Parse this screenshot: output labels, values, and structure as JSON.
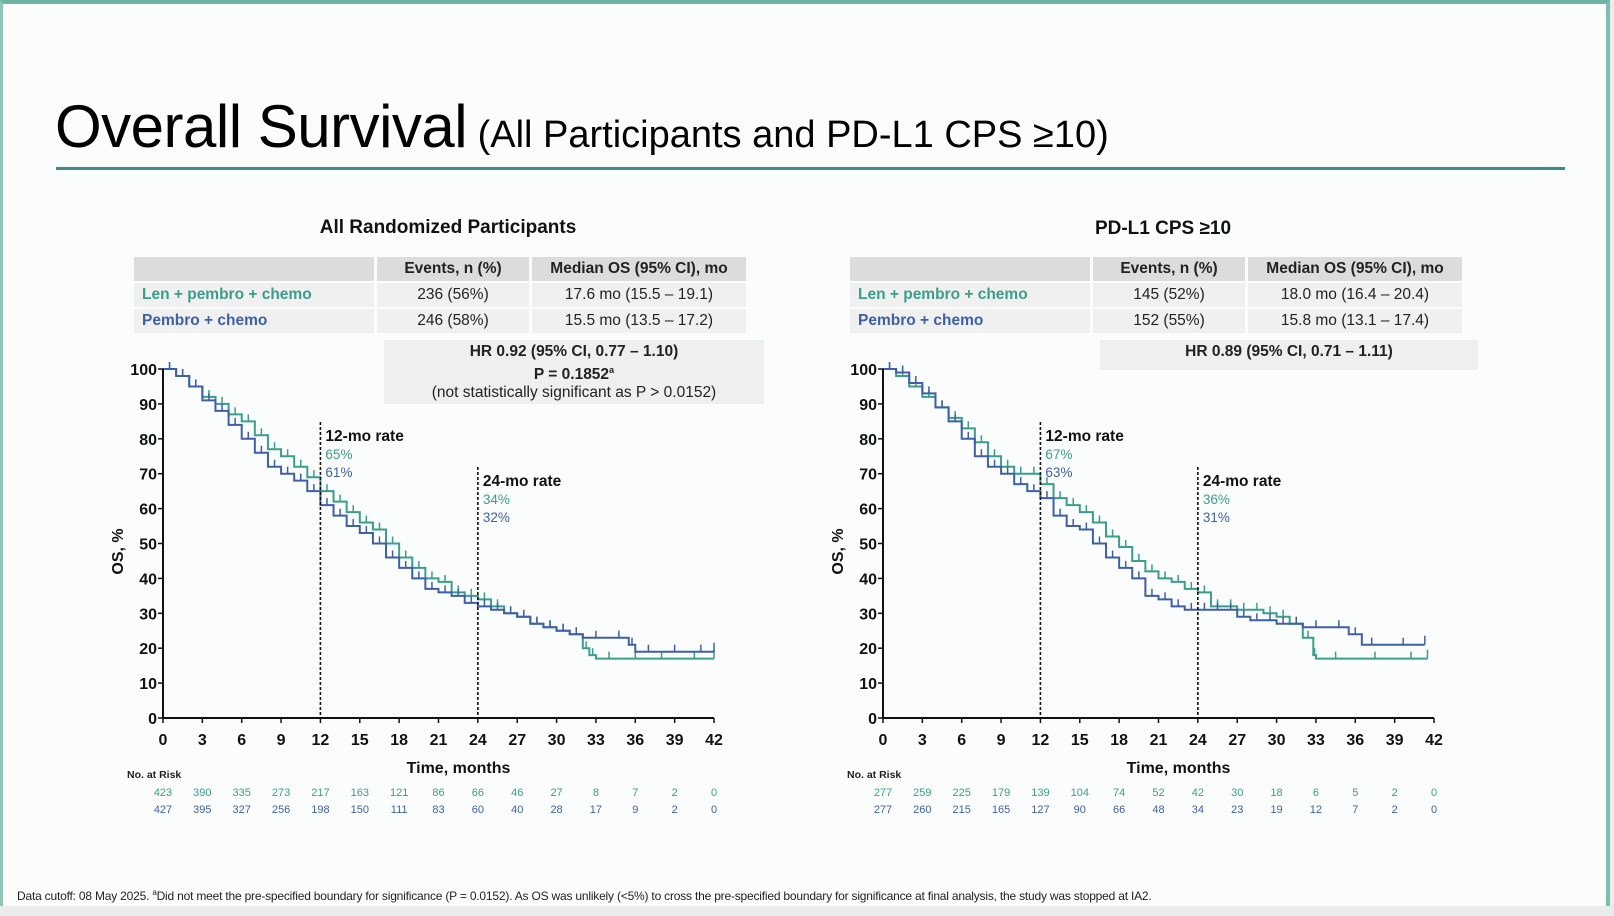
{
  "slide": {
    "title_main": "Overall Survival",
    "title_sub": "(All Participants and PD-L1 CPS ≥10)",
    "footnote_prefix": "Data cutoff: 08 May 2025. ",
    "footnote_marker": "a",
    "footnote_text": "Did not meet the pre-specified boundary for significance (P = 0.0152). As OS was unlikely (<5%) to cross the pre-specified boundary for significance at final analysis, the study was stopped at IA2."
  },
  "colors": {
    "len_arm": "#3a9e8a",
    "pembro_arm": "#3f5fa8",
    "accent_rule": "#3d8a8f"
  },
  "panels": [
    {
      "title": "All Randomized Participants",
      "table": {
        "headers": [
          "",
          "Events, n (%)",
          "Median OS (95% CI), mo"
        ],
        "rows": [
          {
            "arm": "Len + pembro + chemo",
            "events": "236 (56%)",
            "median": "17.6 mo (15.5 – 19.1)"
          },
          {
            "arm": "Pembro + chemo",
            "events": "246 (58%)",
            "median": "15.5 mo (13.5 – 17.2)"
          }
        ],
        "hr": "HR 0.92 (95% CI, 0.77 – 1.10)",
        "p": "P = 0.1852",
        "p_marker": "a",
        "note": "(not statistically significant as P > 0.0152)"
      }
    },
    {
      "title": "PD-L1 CPS ≥10",
      "table": {
        "headers": [
          "",
          "Events, n (%)",
          "Median OS (95% CI), mo"
        ],
        "rows": [
          {
            "arm": "Len + pembro + chemo",
            "events": "145 (52%)",
            "median": "18.0 mo (16.4 – 20.4)"
          },
          {
            "arm": "Pembro + chemo",
            "events": "152 (55%)",
            "median": "15.8 mo (13.1 – 17.4)"
          }
        ],
        "hr": "HR 0.89 (95% CI, 0.71 – 1.11)"
      }
    }
  ],
  "chart_data": [
    {
      "type": "line",
      "title": "All Randomized Participants",
      "xlabel": "Time, months",
      "ylabel": "OS, %",
      "xlim": [
        0,
        42
      ],
      "ylim": [
        0,
        100
      ],
      "xticks": [
        0,
        3,
        6,
        9,
        12,
        15,
        18,
        21,
        24,
        27,
        30,
        33,
        36,
        39,
        42
      ],
      "yticks": [
        0,
        10,
        20,
        30,
        40,
        50,
        60,
        70,
        80,
        90,
        100
      ],
      "annotations": [
        {
          "x": 12,
          "label": "12-mo rate",
          "values": [
            "65%",
            "61%"
          ]
        },
        {
          "x": 24,
          "label": "24-mo rate",
          "values": [
            "34%",
            "32%"
          ]
        }
      ],
      "series": [
        {
          "name": "Len + pembro + chemo",
          "x": [
            0,
            1,
            2,
            3,
            4,
            5,
            6,
            7,
            8,
            9,
            10,
            11,
            12,
            13,
            14,
            15,
            16,
            17,
            18,
            19,
            20,
            21,
            22,
            23,
            24,
            25,
            26,
            27,
            28,
            29,
            30,
            31,
            32,
            32.5,
            33,
            35,
            37,
            39,
            42
          ],
          "y": [
            100,
            98,
            95,
            92,
            90,
            87,
            85,
            81,
            77,
            75,
            72,
            69,
            65,
            62,
            59,
            56,
            54,
            50,
            46,
            43,
            40,
            39,
            36,
            35,
            34,
            32,
            30,
            29,
            27,
            26,
            25,
            24,
            20,
            18,
            17,
            17,
            17,
            17,
            17
          ]
        },
        {
          "name": "Pembro + chemo",
          "x": [
            0,
            1,
            2,
            3,
            4,
            5,
            6,
            7,
            8,
            9,
            10,
            11,
            12,
            13,
            14,
            15,
            16,
            17,
            18,
            19,
            20,
            21,
            22,
            23,
            24,
            25,
            26,
            27,
            28,
            29,
            30,
            31,
            32,
            34,
            35.5,
            36,
            38,
            40,
            42
          ],
          "y": [
            100,
            98,
            95,
            91,
            88,
            84,
            80,
            76,
            72,
            70,
            68,
            65,
            61,
            58,
            55,
            53,
            50,
            46,
            43,
            40,
            37,
            36,
            35,
            33,
            32,
            31,
            30,
            29,
            27,
            26,
            25,
            24,
            23,
            23,
            21,
            19,
            19,
            19,
            19
          ]
        }
      ],
      "at_risk": {
        "label": "No. at Risk",
        "times": [
          0,
          3,
          6,
          9,
          12,
          15,
          18,
          21,
          24,
          27,
          30,
          33,
          36,
          39,
          42
        ],
        "rows": [
          {
            "name": "Len + pembro + chemo",
            "values": [
              423,
              390,
              335,
              273,
              217,
              163,
              121,
              86,
              66,
              46,
              27,
              8,
              7,
              2,
              0
            ]
          },
          {
            "name": "Pembro + chemo",
            "values": [
              427,
              395,
              327,
              256,
              198,
              150,
              111,
              83,
              60,
              40,
              28,
              17,
              9,
              2,
              0
            ]
          }
        ]
      }
    },
    {
      "type": "line",
      "title": "PD-L1 CPS ≥10",
      "xlabel": "Time, months",
      "ylabel": "OS, %",
      "xlim": [
        0,
        42
      ],
      "ylim": [
        0,
        100
      ],
      "xticks": [
        0,
        3,
        6,
        9,
        12,
        15,
        18,
        21,
        24,
        27,
        30,
        33,
        36,
        39,
        42
      ],
      "yticks": [
        0,
        10,
        20,
        30,
        40,
        50,
        60,
        70,
        80,
        90,
        100
      ],
      "annotations": [
        {
          "x": 12,
          "label": "12-mo rate",
          "values": [
            "67%",
            "63%"
          ]
        },
        {
          "x": 24,
          "label": "24-mo rate",
          "values": [
            "36%",
            "31%"
          ]
        }
      ],
      "series": [
        {
          "name": "Len + pembro + chemo",
          "x": [
            0,
            1,
            2,
            3,
            4,
            5,
            6,
            7,
            8,
            9,
            10,
            11,
            12,
            13,
            14,
            15,
            16,
            17,
            18,
            19,
            20,
            21,
            22,
            23,
            24,
            25,
            26,
            27,
            28,
            29,
            30,
            31,
            32,
            32.8,
            33,
            36,
            39,
            41.5
          ],
          "y": [
            100,
            98,
            95,
            92,
            89,
            86,
            83,
            79,
            75,
            72,
            70,
            70,
            67,
            63,
            61,
            59,
            56,
            52,
            49,
            45,
            42,
            40,
            39,
            37,
            36,
            32,
            32,
            31,
            31,
            30,
            29,
            27,
            23,
            18,
            17,
            17,
            17,
            17
          ]
        },
        {
          "name": "Pembro + chemo",
          "x": [
            0,
            1,
            2,
            3,
            4,
            5,
            6,
            7,
            8,
            9,
            10,
            11,
            12,
            13,
            14,
            15,
            16,
            17,
            18,
            19,
            20,
            21,
            22,
            23,
            24,
            25,
            26,
            27,
            28,
            29,
            30,
            31,
            32,
            34,
            35.5,
            36.5,
            38,
            41.3
          ],
          "y": [
            100,
            99,
            96,
            93,
            89,
            85,
            80,
            75,
            72,
            70,
            67,
            65,
            63,
            58,
            55,
            54,
            50,
            46,
            43,
            40,
            35,
            34,
            32,
            31,
            31,
            31,
            31,
            29,
            28,
            28,
            27,
            27,
            26,
            26,
            24,
            21,
            21,
            21
          ]
        }
      ],
      "at_risk": {
        "label": "No. at Risk",
        "times": [
          0,
          3,
          6,
          9,
          12,
          15,
          18,
          21,
          24,
          27,
          30,
          33,
          36,
          39,
          42
        ],
        "rows": [
          {
            "name": "Len + pembro + chemo",
            "values": [
              277,
              259,
              225,
              179,
              139,
              104,
              74,
              52,
              42,
              30,
              18,
              6,
              5,
              2,
              0
            ]
          },
          {
            "name": "Pembro + chemo",
            "values": [
              277,
              260,
              215,
              165,
              127,
              90,
              66,
              48,
              34,
              23,
              19,
              12,
              7,
              2,
              0
            ]
          }
        ]
      }
    }
  ]
}
